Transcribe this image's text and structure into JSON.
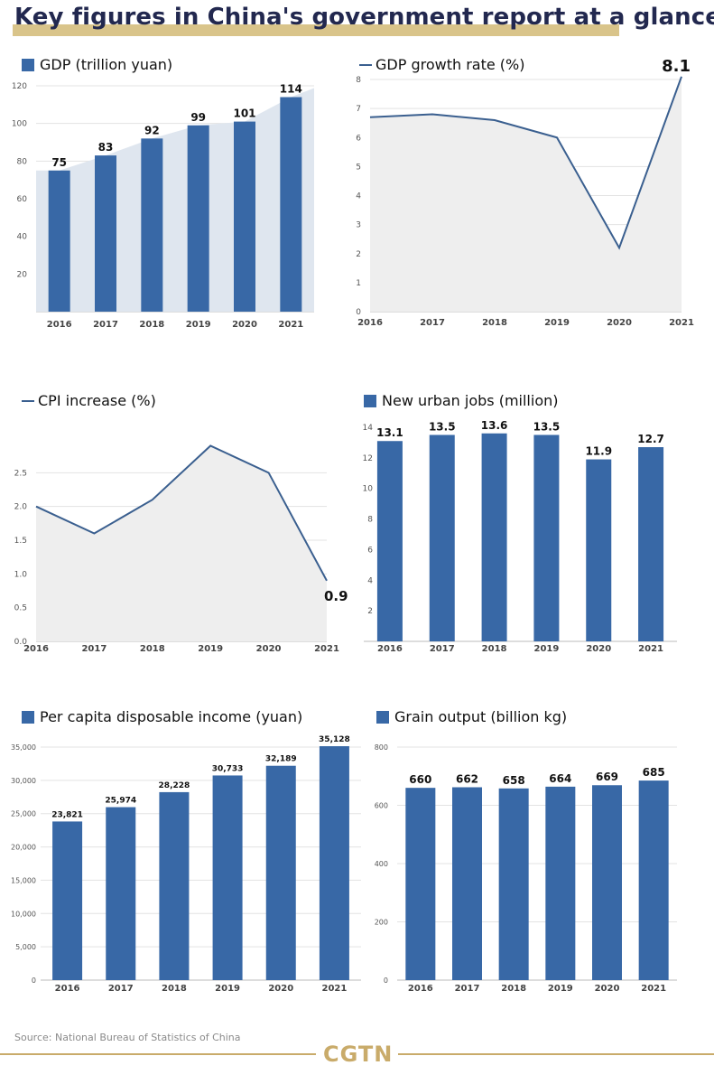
{
  "title": "Key figures in China's government report at a glance",
  "source": "Source: National Bureau of Statistics of China",
  "brand": "CGTN",
  "colors": {
    "bar": "#3868a6",
    "line": "#3a5f8f",
    "area": "#eeeeee",
    "title_highlight": "#d9c48a",
    "brand": "#c9ab6a"
  },
  "chart_data": [
    {
      "id": "gdp",
      "type": "bar",
      "title": "GDP (trillion yuan)",
      "legend_marker": "square",
      "categories": [
        "2016",
        "2017",
        "2018",
        "2019",
        "2020",
        "2021"
      ],
      "values": [
        75,
        83,
        92,
        99,
        101,
        114
      ],
      "labels": [
        "75",
        "83",
        "92",
        "99",
        "101",
        "114"
      ],
      "ylim": [
        0,
        120
      ],
      "yticks": [
        20,
        40,
        60,
        80,
        100,
        120
      ],
      "ytick_labels": [
        "20",
        "40",
        "60",
        "80",
        "100",
        "120"
      ],
      "background_area": true
    },
    {
      "id": "gdp_growth",
      "type": "line",
      "title": "GDP growth rate (%)",
      "legend_marker": "line",
      "categories": [
        "2016",
        "2017",
        "2018",
        "2019",
        "2020",
        "2021"
      ],
      "values": [
        6.7,
        6.8,
        6.6,
        6.0,
        2.2,
        8.1
      ],
      "last_label": "8.1",
      "ylim": [
        0,
        8
      ],
      "yticks": [
        0,
        1,
        2,
        3,
        4,
        5,
        6,
        7,
        8
      ],
      "ytick_labels": [
        "0",
        "1",
        "2",
        "3",
        "4",
        "5",
        "6",
        "7",
        "8"
      ]
    },
    {
      "id": "cpi",
      "type": "line",
      "title": "CPI increase (%)",
      "legend_marker": "line",
      "categories": [
        "2016",
        "2017",
        "2018",
        "2019",
        "2020",
        "2021"
      ],
      "values": [
        2.0,
        1.6,
        2.1,
        2.9,
        2.5,
        0.9
      ],
      "last_label": "0.9",
      "ylim": [
        0,
        3.0
      ],
      "yticks": [
        0,
        0.5,
        1.0,
        1.5,
        2.0,
        2.5
      ],
      "ytick_labels": [
        "0.0",
        "0.5",
        "1.0",
        "1.5",
        "2.0",
        "2.5"
      ]
    },
    {
      "id": "jobs",
      "type": "bar",
      "title": "New urban jobs (million)",
      "legend_marker": "square",
      "categories": [
        "2016",
        "2017",
        "2018",
        "2019",
        "2020",
        "2021"
      ],
      "values": [
        13.1,
        13.5,
        13.6,
        13.5,
        11.9,
        12.7
      ],
      "labels": [
        "13.1",
        "13.5",
        "13.6",
        "13.5",
        "11.9",
        "12.7"
      ],
      "ylim": [
        0,
        14
      ],
      "yticks": [
        2,
        4,
        6,
        8,
        10,
        12,
        14
      ],
      "ytick_labels": [
        "2",
        "4",
        "6",
        "8",
        "10",
        "12",
        "14"
      ]
    },
    {
      "id": "income",
      "type": "bar",
      "title": "Per capita disposable income (yuan)",
      "legend_marker": "square",
      "categories": [
        "2016",
        "2017",
        "2018",
        "2019",
        "2020",
        "2021"
      ],
      "values": [
        23821,
        25974,
        28228,
        30733,
        32189,
        35128
      ],
      "labels": [
        "23,821",
        "25,974",
        "28,228",
        "30,733",
        "32,189",
        "35,128"
      ],
      "ylim": [
        0,
        35000
      ],
      "yticks": [
        0,
        5000,
        10000,
        15000,
        20000,
        25000,
        30000,
        35000
      ],
      "ytick_labels": [
        "0",
        "5,000",
        "10,000",
        "15,000",
        "20,000",
        "25,000",
        "30,000",
        "35,000"
      ]
    },
    {
      "id": "grain",
      "type": "bar",
      "title": "Grain output (billion kg)",
      "legend_marker": "square",
      "categories": [
        "2016",
        "2017",
        "2018",
        "2019",
        "2020",
        "2021"
      ],
      "values": [
        660,
        662,
        658,
        664,
        669,
        685
      ],
      "labels": [
        "660",
        "662",
        "658",
        "664",
        "669",
        "685"
      ],
      "ylim": [
        0,
        800
      ],
      "yticks": [
        0,
        200,
        400,
        600,
        800
      ],
      "ytick_labels": [
        "0",
        "200",
        "400",
        "600",
        "800"
      ]
    }
  ]
}
